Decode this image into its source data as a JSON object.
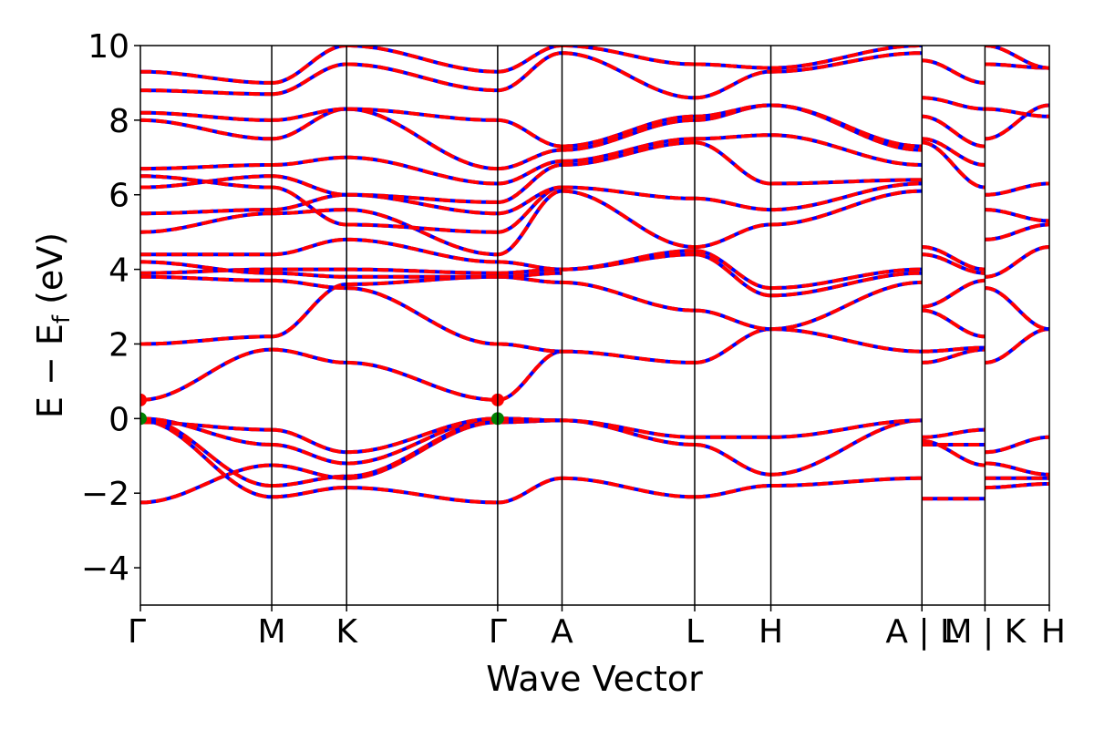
{
  "chart_data": {
    "type": "line",
    "xlabel": "Wave Vector",
    "ylabel": "E − E",
    "ylabel_sub": "f",
    "ylabel_unit": " (eV)",
    "ylim": [
      -5,
      10
    ],
    "yticks": [
      -4,
      -2,
      0,
      2,
      4,
      6,
      8,
      10
    ],
    "ytick_labels": [
      "−4",
      "−2",
      "0",
      "2",
      "4",
      "6",
      "8",
      "10"
    ],
    "grid": false,
    "kpath": [
      {
        "label": "Γ",
        "x": 0.0
      },
      {
        "label": "M",
        "x": 1.0
      },
      {
        "label": "K",
        "x": 1.57
      },
      {
        "label": "Γ",
        "x": 2.72
      },
      {
        "label": "A",
        "x": 3.21
      },
      {
        "label": "L",
        "x": 4.22
      },
      {
        "label": "H",
        "x": 4.8
      },
      {
        "label": "A | L",
        "x": 5.95
      },
      {
        "label": "M | K",
        "x": 6.43
      },
      {
        "label": "H",
        "x": 6.92
      }
    ],
    "colors": {
      "band_primary": "#0000ff",
      "band_overlay": "#ff0000",
      "vbm_marker": "#008000",
      "cbm_marker": "#ff0000"
    },
    "extrema": [
      {
        "name": "VBM",
        "x": [
          0.0,
          2.72
        ],
        "y": 0.0
      },
      {
        "name": "CBM",
        "x": [
          0.0,
          2.72
        ],
        "y": 0.5
      }
    ],
    "band_segments": [
      {
        "x0": 0.0,
        "x1": 1.0,
        "ends": [
          [
            -2.25,
            -1.25
          ],
          [
            -0.05,
            -2.1
          ],
          [
            0.0,
            -1.8
          ],
          [
            0.0,
            -0.7
          ],
          [
            -0.1,
            -0.3
          ],
          [
            0.5,
            1.85
          ],
          [
            2.0,
            2.2
          ],
          [
            3.8,
            3.7
          ],
          [
            3.9,
            4.0
          ],
          [
            4.2,
            3.9
          ],
          [
            4.4,
            4.4
          ],
          [
            5.0,
            5.5
          ],
          [
            5.5,
            5.6
          ],
          [
            6.2,
            6.5
          ],
          [
            6.5,
            6.2
          ],
          [
            6.7,
            6.8
          ],
          [
            8.0,
            7.5
          ],
          [
            8.2,
            8.0
          ],
          [
            8.8,
            8.7
          ],
          [
            9.3,
            9.0
          ]
        ]
      },
      {
        "x0": 1.0,
        "x1": 1.57,
        "ends": [
          [
            -2.1,
            -1.85
          ],
          [
            -1.8,
            -1.55
          ],
          [
            -1.25,
            -1.6
          ],
          [
            -0.7,
            -1.2
          ],
          [
            -0.3,
            -0.9
          ],
          [
            1.85,
            1.5
          ],
          [
            2.2,
            3.6
          ],
          [
            3.7,
            3.5
          ],
          [
            3.9,
            3.8
          ],
          [
            4.0,
            4.0
          ],
          [
            4.4,
            4.8
          ],
          [
            5.5,
            5.6
          ],
          [
            5.6,
            6.0
          ],
          [
            6.2,
            5.2
          ],
          [
            6.5,
            6.0
          ],
          [
            6.8,
            7.0
          ],
          [
            7.5,
            8.3
          ],
          [
            8.0,
            8.3
          ],
          [
            8.7,
            9.5
          ],
          [
            9.0,
            10.0
          ]
        ]
      },
      {
        "x0": 1.57,
        "x1": 2.72,
        "ends": [
          [
            -1.85,
            -2.25
          ],
          [
            -1.6,
            -0.1
          ],
          [
            -1.55,
            -0.05
          ],
          [
            -1.2,
            0.0
          ],
          [
            -0.9,
            0.0
          ],
          [
            1.5,
            0.5
          ],
          [
            3.5,
            2.0
          ],
          [
            3.6,
            3.8
          ],
          [
            3.8,
            3.8
          ],
          [
            4.0,
            3.9
          ],
          [
            4.8,
            4.2
          ],
          [
            5.6,
            4.4
          ],
          [
            5.2,
            5.0
          ],
          [
            6.0,
            5.5
          ],
          [
            6.0,
            5.8
          ],
          [
            7.0,
            6.3
          ],
          [
            8.3,
            6.7
          ],
          [
            8.3,
            8.0
          ],
          [
            9.5,
            8.8
          ],
          [
            10.0,
            9.3
          ]
        ]
      },
      {
        "x0": 2.72,
        "x1": 3.21,
        "ends": [
          [
            -2.25,
            -1.6
          ],
          [
            -0.1,
            -0.05
          ],
          [
            -0.05,
            -0.05
          ],
          [
            0.0,
            -0.05
          ],
          [
            0.0,
            -0.05
          ],
          [
            0.5,
            1.8
          ],
          [
            2.0,
            1.8
          ],
          [
            3.8,
            3.65
          ],
          [
            3.8,
            3.9
          ],
          [
            3.9,
            4.0
          ],
          [
            4.2,
            4.0
          ],
          [
            4.4,
            6.1
          ],
          [
            5.0,
            6.2
          ],
          [
            5.5,
            6.2
          ],
          [
            5.8,
            6.8
          ],
          [
            6.3,
            6.9
          ],
          [
            6.7,
            7.2
          ],
          [
            8.0,
            7.3
          ],
          [
            8.8,
            9.8
          ],
          [
            9.3,
            10.0
          ]
        ]
      },
      {
        "x0": 3.21,
        "x1": 4.22,
        "ends": [
          [
            -1.6,
            -2.1
          ],
          [
            -0.05,
            -0.7
          ],
          [
            -0.05,
            -0.5
          ],
          [
            1.8,
            1.5
          ],
          [
            3.65,
            2.9
          ],
          [
            4.0,
            4.4
          ],
          [
            4.0,
            4.5
          ],
          [
            6.1,
            4.6
          ],
          [
            6.2,
            5.9
          ],
          [
            6.8,
            7.4
          ],
          [
            6.9,
            7.5
          ],
          [
            7.2,
            8.0
          ],
          [
            7.3,
            8.1
          ],
          [
            9.8,
            8.6
          ],
          [
            10.0,
            9.5
          ]
        ]
      },
      {
        "x0": 4.22,
        "x1": 4.8,
        "ends": [
          [
            -2.1,
            -1.8
          ],
          [
            -0.7,
            -1.5
          ],
          [
            -0.5,
            -0.5
          ],
          [
            1.5,
            2.4
          ],
          [
            2.9,
            2.4
          ],
          [
            4.4,
            3.3
          ],
          [
            4.5,
            3.5
          ],
          [
            4.6,
            5.2
          ],
          [
            5.9,
            5.6
          ],
          [
            7.4,
            6.3
          ],
          [
            7.5,
            7.6
          ],
          [
            8.0,
            8.4
          ],
          [
            8.1,
            8.4
          ],
          [
            8.6,
            9.3
          ],
          [
            9.5,
            9.4
          ]
        ]
      },
      {
        "x0": 4.8,
        "x1": 5.95,
        "ends": [
          [
            -1.8,
            -1.6
          ],
          [
            -1.5,
            -0.05
          ],
          [
            -0.5,
            -0.05
          ],
          [
            2.4,
            1.8
          ],
          [
            2.4,
            3.65
          ],
          [
            3.3,
            3.9
          ],
          [
            3.5,
            4.0
          ],
          [
            5.2,
            6.1
          ],
          [
            5.6,
            6.3
          ],
          [
            6.3,
            6.4
          ],
          [
            7.6,
            6.8
          ],
          [
            8.4,
            7.2
          ],
          [
            8.4,
            7.3
          ],
          [
            9.3,
            9.8
          ],
          [
            9.4,
            10.0
          ]
        ]
      },
      {
        "x0": 5.95,
        "x1": 6.43,
        "ends": [
          [
            -2.15,
            -2.15
          ],
          [
            -0.7,
            -0.7
          ],
          [
            -0.6,
            -1.25
          ],
          [
            -0.5,
            -0.3
          ],
          [
            1.5,
            1.85
          ],
          [
            1.8,
            1.9
          ],
          [
            2.9,
            2.2
          ],
          [
            3.0,
            3.7
          ],
          [
            4.4,
            3.9
          ],
          [
            4.6,
            4.0
          ],
          [
            7.4,
            6.2
          ],
          [
            7.5,
            6.8
          ],
          [
            8.1,
            7.3
          ],
          [
            8.6,
            8.3
          ],
          [
            9.6,
            9.0
          ]
        ]
      },
      {
        "x0": 6.43,
        "x1": 6.92,
        "ends": [
          [
            -1.85,
            -1.75
          ],
          [
            -1.6,
            -1.6
          ],
          [
            -1.2,
            -1.5
          ],
          [
            -0.9,
            -0.5
          ],
          [
            1.5,
            2.4
          ],
          [
            3.5,
            2.4
          ],
          [
            3.8,
            4.6
          ],
          [
            4.8,
            5.2
          ],
          [
            5.6,
            5.3
          ],
          [
            6.0,
            6.3
          ],
          [
            7.5,
            8.4
          ],
          [
            8.3,
            8.1
          ],
          [
            9.5,
            9.4
          ],
          [
            10.0,
            9.4
          ]
        ]
      }
    ]
  }
}
